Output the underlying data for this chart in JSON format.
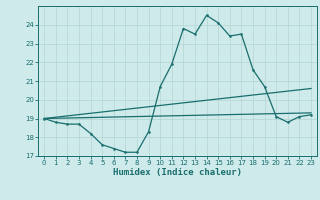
{
  "xlabel": "Humidex (Indice chaleur)",
  "bg_color": "#ceeaea",
  "grid_color": "#b8d8d8",
  "line_color": "#1a6e6e",
  "xlim": [
    -0.5,
    23.5
  ],
  "ylim": [
    17,
    25
  ],
  "yticks": [
    17,
    18,
    19,
    20,
    21,
    22,
    23,
    24
  ],
  "xticks": [
    0,
    1,
    2,
    3,
    4,
    5,
    6,
    7,
    8,
    9,
    10,
    11,
    12,
    13,
    14,
    15,
    16,
    17,
    18,
    19,
    20,
    21,
    22,
    23
  ],
  "curve1_x": [
    0,
    1,
    2,
    3,
    4,
    5,
    6,
    7,
    8,
    9,
    10,
    11,
    12,
    13,
    14,
    15,
    16,
    17,
    18,
    19,
    20,
    21,
    22,
    23
  ],
  "curve1_y": [
    19.0,
    18.8,
    18.7,
    18.7,
    18.2,
    17.6,
    17.4,
    17.2,
    17.2,
    18.3,
    20.7,
    21.9,
    23.8,
    23.5,
    24.5,
    24.1,
    23.4,
    23.5,
    21.6,
    20.7,
    19.1,
    18.8,
    19.1,
    19.2
  ],
  "curve2_x": [
    0,
    23
  ],
  "curve2_y": [
    19.0,
    19.3
  ],
  "curve3_x": [
    0,
    23
  ],
  "curve3_y": [
    19.0,
    20.6
  ]
}
